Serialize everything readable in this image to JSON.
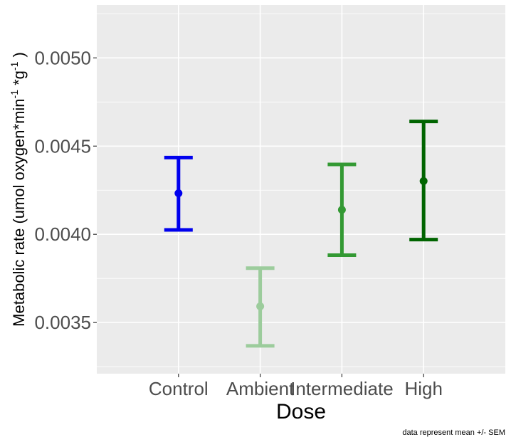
{
  "chart_data": {
    "type": "errorbar",
    "categories": [
      "Control",
      "Ambient",
      "Intermediate",
      "High"
    ],
    "series": [
      {
        "values": [
          0.004233,
          0.003592,
          0.004139,
          0.004302
        ],
        "lower": [
          0.004025,
          0.003368,
          0.003882,
          0.00397
        ],
        "upper": [
          0.004435,
          0.003808,
          0.004396,
          0.00464
        ],
        "colors": [
          "#0000ee",
          "#9ccc9c",
          "#339933",
          "#006400"
        ]
      }
    ],
    "xlabel": "Dose",
    "ylabel_parts": {
      "main": "Metabolic rate (umol oxygen*min",
      "sup1": "-1",
      "mid": " *g",
      "sup2": "-1",
      "end": " )"
    },
    "ylim": [
      0.00321,
      0.0053
    ],
    "yticks": [
      0.0035,
      0.004,
      0.0045,
      0.005
    ],
    "ytick_labels": [
      "0.0035",
      "0.0040",
      "0.0045",
      "0.0050"
    ],
    "grid": true,
    "panel_background": "#ebebeb",
    "grid_color": "#ffffff",
    "caption": "data represent mean +/- SEM"
  }
}
